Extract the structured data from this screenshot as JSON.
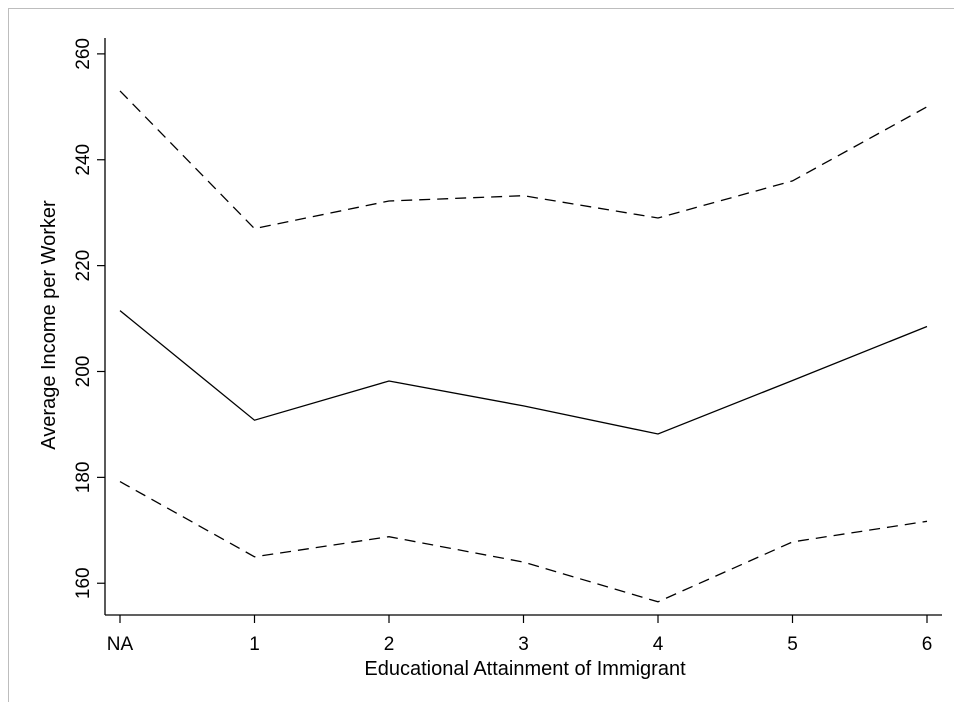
{
  "chart_data": {
    "type": "line",
    "title": "",
    "xlabel": "Educational Attainment of Immigrant",
    "ylabel": "Average Income per Worker",
    "categories": [
      "NA",
      "1",
      "2",
      "3",
      "4",
      "5",
      "6"
    ],
    "ylim": [
      154,
      263
    ],
    "yticks": [
      "160",
      "180",
      "200",
      "220",
      "240",
      "260"
    ],
    "grid": false,
    "legend": "none",
    "series": [
      {
        "style": "dashed",
        "color": "#000000",
        "values": [
          253.0,
          227.0,
          232.2,
          233.2,
          229.0,
          236.0,
          250.0
        ]
      },
      {
        "style": "solid",
        "color": "#000000",
        "values": [
          211.5,
          190.8,
          198.2,
          193.5,
          188.2,
          198.3,
          208.5
        ]
      },
      {
        "style": "dashed",
        "color": "#000000",
        "values": [
          179.2,
          165.0,
          168.8,
          164.0,
          156.5,
          167.8,
          171.7
        ]
      }
    ]
  }
}
